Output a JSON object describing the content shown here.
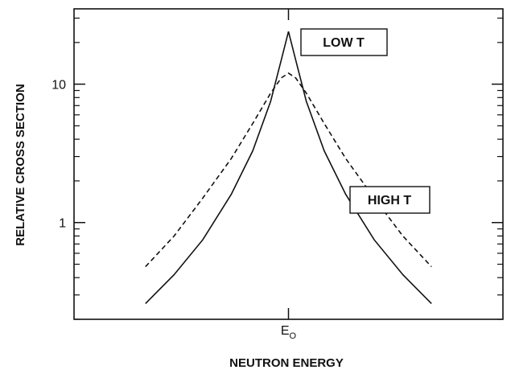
{
  "chart_data": {
    "type": "line",
    "title": "",
    "xlabel": "NEUTRON ENERGY",
    "ylabel": "RELATIVE CROSS SECTION",
    "yscale": "log",
    "ylim": [
      0.2,
      35
    ],
    "xlim": [
      -3,
      3
    ],
    "x_tick_labels": [
      {
        "x": 0,
        "main": "E",
        "sub": "O"
      }
    ],
    "y_ticks": [
      1,
      10
    ],
    "y_tick_labels": [
      "1",
      "10"
    ],
    "grid": false,
    "series": [
      {
        "name": "LOW T",
        "style": "solid",
        "x": [
          -2,
          -1.6,
          -1.2,
          -0.8,
          -0.5,
          -0.25,
          -0.1,
          0,
          0.1,
          0.25,
          0.5,
          0.8,
          1.2,
          1.6,
          2
        ],
        "y": [
          0.26,
          0.42,
          0.75,
          1.6,
          3.3,
          7.5,
          15,
          24,
          15,
          7.5,
          3.3,
          1.6,
          0.75,
          0.42,
          0.26
        ]
      },
      {
        "name": "HIGH T",
        "style": "dashed",
        "x": [
          -2,
          -1.6,
          -1.2,
          -0.8,
          -0.5,
          -0.25,
          -0.1,
          0,
          0.1,
          0.25,
          0.5,
          0.8,
          1.2,
          1.6,
          2
        ],
        "y": [
          0.48,
          0.8,
          1.5,
          2.9,
          5.2,
          8.6,
          11.1,
          12,
          11.1,
          8.6,
          5.2,
          2.9,
          1.5,
          0.8,
          0.48
        ]
      }
    ],
    "annotations": [
      {
        "text": "LOW T",
        "series": "LOW T"
      },
      {
        "text": "HIGH T",
        "series": "HIGH T"
      }
    ]
  }
}
